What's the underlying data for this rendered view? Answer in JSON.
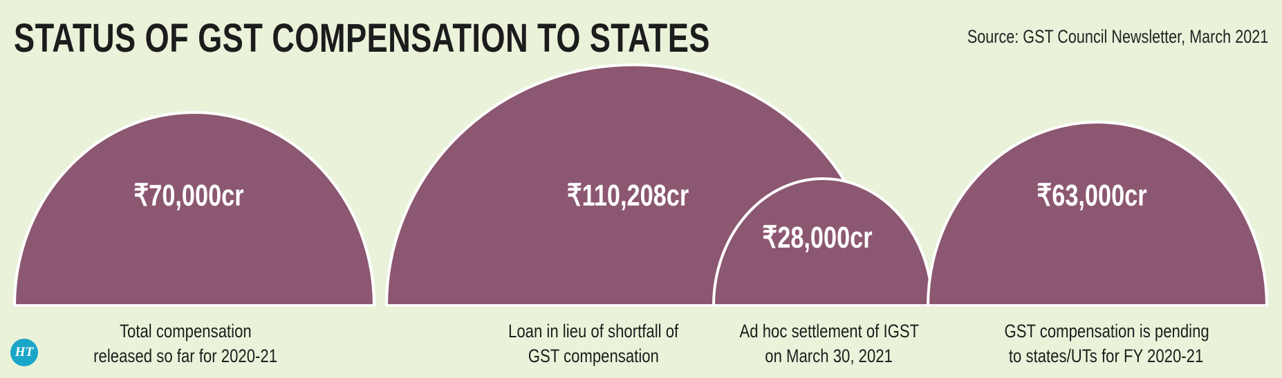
{
  "header": {
    "title": "STATUS OF GST COMPENSATION TO STATES",
    "source": "Source: GST Council Newsletter, March 2021"
  },
  "logo": "HT",
  "colors": {
    "background": "#eaf3da",
    "shape": "#8c5770",
    "outline": "#ffffff",
    "logo": "#1aa6c8"
  },
  "chart_data": {
    "type": "semicircle",
    "title": "STATUS OF GST COMPENSATION TO STATES",
    "unit": "₹ crore",
    "items": [
      {
        "value": 70000,
        "value_label": "₹70,000cr",
        "line1": "Total compensation",
        "line2": "released so far for 2020-21"
      },
      {
        "value": 110208,
        "value_label": "₹110,208cr",
        "line1": "Loan in lieu of shortfall of",
        "line2": "GST compensation"
      },
      {
        "value": 28000,
        "value_label": "₹28,000cr",
        "line1": "Ad hoc settlement of IGST",
        "line2": "on March 30, 2021"
      },
      {
        "value": 63000,
        "value_label": "₹63,000cr",
        "line1": "GST compensation is pending",
        "line2": "to states/UTs for FY 2020-21"
      }
    ]
  }
}
